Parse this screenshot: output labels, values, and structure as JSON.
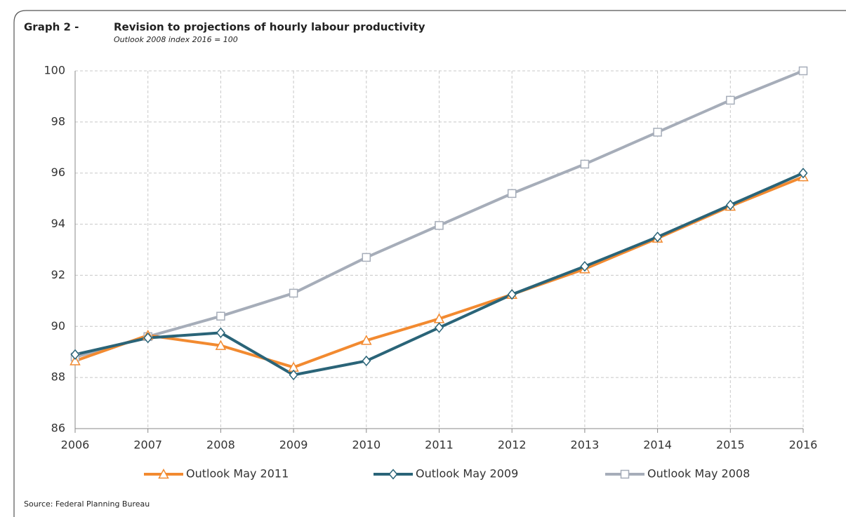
{
  "chart_data": {
    "type": "line",
    "label": "Graph 2 -",
    "title": "Revision to projections of hourly labour productivity",
    "subtitle": "Outlook 2008 index 2016 = 100",
    "source": "Source: Federal Planning Bureau",
    "x": [
      2006,
      2007,
      2008,
      2009,
      2010,
      2011,
      2012,
      2013,
      2014,
      2015,
      2016
    ],
    "xlim": [
      2006,
      2016
    ],
    "xticks": [
      2006,
      2007,
      2008,
      2009,
      2010,
      2011,
      2012,
      2013,
      2014,
      2015,
      2016
    ],
    "ylim": [
      86,
      100
    ],
    "yticks": [
      86,
      88,
      90,
      92,
      94,
      96,
      98,
      100
    ],
    "grid": true,
    "series": [
      {
        "name": "Outlook May 2011",
        "color": "#f28a30",
        "marker": "triangle",
        "values": [
          88.65,
          89.65,
          89.25,
          88.4,
          89.45,
          90.3,
          91.25,
          92.25,
          93.45,
          94.7,
          95.85
        ]
      },
      {
        "name": "Outlook May 2009",
        "color": "#2a6478",
        "marker": "diamond",
        "values": [
          88.9,
          89.55,
          89.75,
          88.1,
          88.65,
          89.95,
          91.25,
          92.35,
          93.5,
          94.75,
          96.0
        ]
      },
      {
        "name": "Outlook May 2008",
        "color": "#a6adb9",
        "marker": "square",
        "values": [
          88.8,
          89.6,
          90.4,
          91.3,
          92.7,
          93.95,
          95.2,
          96.35,
          97.6,
          98.85,
          100
        ]
      }
    ]
  }
}
